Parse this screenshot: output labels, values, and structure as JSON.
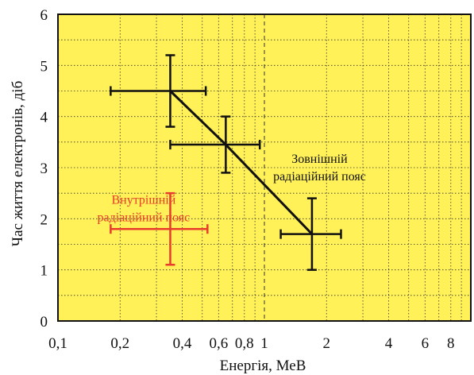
{
  "chart_data": {
    "type": "scatter",
    "xlabel": "Енергія, МеВ",
    "ylabel": "Час життя електронів, діб",
    "x_scale": "log",
    "xlim": [
      0.1,
      10
    ],
    "ylim": [
      0,
      6
    ],
    "x_ticks": [
      {
        "value": 0.1,
        "label": "0,1"
      },
      {
        "value": 0.2,
        "label": "0,2"
      },
      {
        "value": 0.4,
        "label": "0,4"
      },
      {
        "value": 0.6,
        "label": "0,6"
      },
      {
        "value": 0.8,
        "label": "0,8"
      },
      {
        "value": 1,
        "label": "1"
      },
      {
        "value": 2,
        "label": "2"
      },
      {
        "value": 4,
        "label": "4"
      },
      {
        "value": 6,
        "label": "6"
      },
      {
        "value": 8,
        "label": "8"
      }
    ],
    "y_ticks": [
      {
        "value": 0,
        "label": "0"
      },
      {
        "value": 1,
        "label": "1"
      },
      {
        "value": 2,
        "label": "2"
      },
      {
        "value": 3,
        "label": "3"
      },
      {
        "value": 4,
        "label": "4"
      },
      {
        "value": 5,
        "label": "5"
      },
      {
        "value": 6,
        "label": "6"
      }
    ],
    "grid": true,
    "background_color": "#fff157",
    "series": [
      {
        "name": "Зовнішній радіаційний пояс",
        "color": "#111111",
        "connected": true,
        "points": [
          {
            "x": 0.35,
            "y": 4.5,
            "x_err": [
              0.18,
              0.52
            ],
            "y_err": [
              3.8,
              5.2
            ]
          },
          {
            "x": 0.65,
            "y": 3.45,
            "x_err": [
              0.35,
              0.95
            ],
            "y_err": [
              2.9,
              4.0
            ]
          },
          {
            "x": 1.7,
            "y": 1.7,
            "x_err": [
              1.2,
              2.35
            ],
            "y_err": [
              1.0,
              2.4
            ]
          }
        ]
      },
      {
        "name": "Внутрішній радіаційний пояс",
        "color": "#e83c2c",
        "connected": false,
        "points": [
          {
            "x": 0.35,
            "y": 1.8,
            "x_err": [
              0.18,
              0.53
            ],
            "y_err": [
              1.1,
              2.5
            ]
          }
        ]
      }
    ],
    "annotations": [
      {
        "lines": [
          "Зовнішній",
          "радіаційний пояс"
        ],
        "color": "#111111",
        "x": 1.85,
        "y": 3.0
      },
      {
        "lines": [
          "Внутрішній",
          "радіаційний пояс"
        ],
        "color": "#e83c2c",
        "x": 0.26,
        "y": 2.2
      }
    ]
  }
}
